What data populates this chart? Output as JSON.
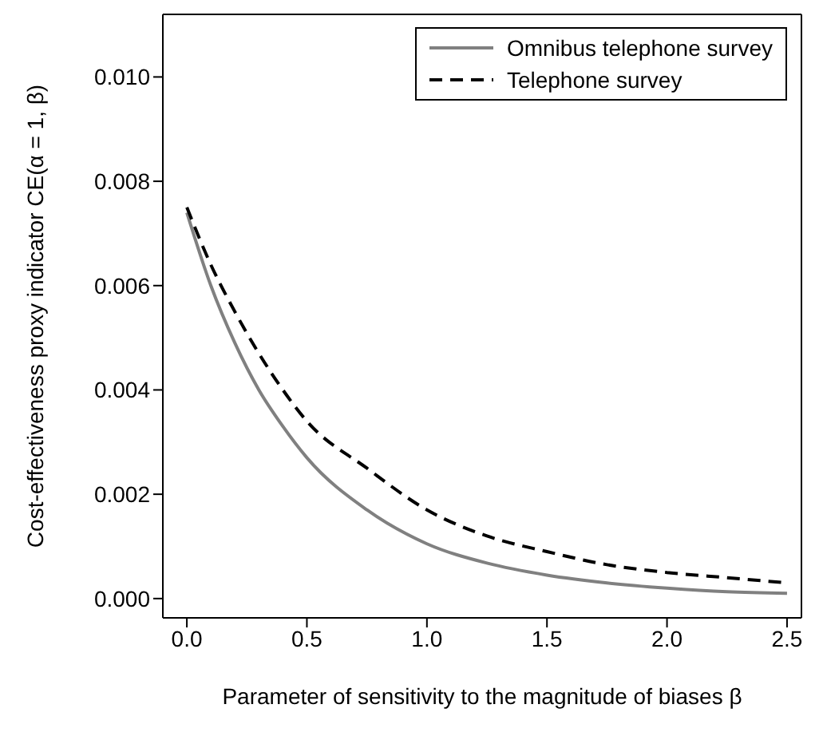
{
  "chart_data": {
    "type": "line",
    "xlabel": "Parameter of sensitivity to the magnitude of biases β",
    "ylabel": "Cost-effectiveness proxy indicator  CE(α = 1, β)",
    "x": [
      0,
      0.1,
      0.2,
      0.3,
      0.4,
      0.5,
      0.75,
      1.0,
      1.25,
      1.5,
      1.75,
      2.0,
      2.25,
      2.5
    ],
    "series": [
      {
        "name": "Omnibus telephone survey",
        "color": "#808080",
        "line_style": "solid",
        "values": [
          0.0074,
          0.006,
          0.0049,
          0.004,
          0.0033,
          0.0027,
          0.0017,
          0.00105,
          0.00068,
          0.00045,
          0.0003,
          0.0002,
          0.00013,
          0.0001
        ]
      },
      {
        "name": "Telephone survey",
        "color": "#000000",
        "line_style": "dashed",
        "values": [
          0.0075,
          0.0064,
          0.0055,
          0.0047,
          0.004,
          0.0034,
          0.0025,
          0.0017,
          0.0012,
          0.0009,
          0.00065,
          0.0005,
          0.0004,
          0.0003
        ]
      }
    ],
    "xlim": [
      -0.1,
      2.56
    ],
    "ylim": [
      -0.00037,
      0.0112
    ],
    "xticks": [
      {
        "value": 0,
        "label": "0.0"
      },
      0.5,
      {
        "value": 1,
        "label": "1.0"
      },
      1.5,
      {
        "value": 2,
        "label": "2.0"
      },
      2.5
    ],
    "yticks": [
      {
        "value": 0,
        "label": "0.000"
      },
      {
        "value": 0.002,
        "label": "0.002"
      },
      {
        "value": 0.004,
        "label": "0.004"
      },
      {
        "value": 0.006,
        "label": "0.006"
      },
      {
        "value": 0.008,
        "label": "0.008"
      },
      {
        "value": 0.01,
        "label": "0.010"
      }
    ],
    "grid": false,
    "legend": "top right",
    "marker": "none"
  }
}
